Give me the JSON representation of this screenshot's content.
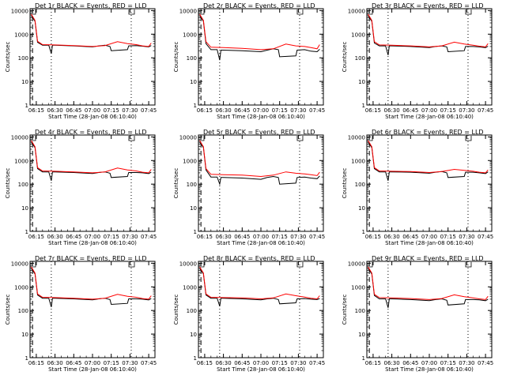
{
  "chart_data": {
    "type": "line",
    "layout": "3x3 grid",
    "y_scale": "log",
    "ylim": [
      1,
      12000
    ],
    "ylabel": "Counts/sec",
    "xlabel": "Start Time (28-Jan-08 06:10:40)",
    "x_ticks": [
      "06:15",
      "06:30",
      "06:45",
      "07:00",
      "07:15",
      "07:30",
      "07:45"
    ],
    "y_ticks": [
      "1",
      "10",
      "100",
      "1000",
      "10000"
    ],
    "xlim": [
      "06:10",
      "07:50"
    ],
    "series_colors": {
      "events": "#000000",
      "lld": "#ff0000"
    },
    "panels": [
      {
        "title": "Det 1r BLACK = Events, RED = LLD",
        "series": [
          {
            "color": "events",
            "x": [
              "06:11",
              "06:14",
              "06:16",
              "06:20",
              "06:25",
              "06:27",
              "06:28",
              "06:30",
              "06:45",
              "07:00",
              "07:05",
              "07:10",
              "07:14",
              "07:15",
              "07:28",
              "07:29",
              "07:35",
              "07:40",
              "07:45",
              "07:47"
            ],
            "y": [
              6000,
              3500,
              450,
              340,
              340,
              150,
              340,
              340,
              320,
              290,
              320,
              340,
              300,
              200,
              220,
              320,
              330,
              310,
              290,
              330
            ]
          },
          {
            "color": "lld",
            "x": [
              "06:11",
              "06:14",
              "06:16",
              "06:20",
              "06:30",
              "06:45",
              "07:00",
              "07:10",
              "07:20",
              "07:28",
              "07:35",
              "07:40",
              "07:45",
              "07:47"
            ],
            "y": [
              7000,
              3800,
              500,
              360,
              350,
              330,
              300,
              330,
              480,
              400,
              360,
              320,
              300,
              420
            ]
          }
        ]
      },
      {
        "title": "Det 2r BLACK = Events, RED = LLD",
        "series": [
          {
            "color": "events",
            "x": [
              "06:11",
              "06:14",
              "06:16",
              "06:20",
              "06:25",
              "06:27",
              "06:28",
              "06:30",
              "06:45",
              "07:00",
              "07:05",
              "07:10",
              "07:14",
              "07:15",
              "07:28",
              "07:29",
              "07:35",
              "07:40",
              "07:45",
              "07:47"
            ],
            "y": [
              6000,
              3500,
              400,
              220,
              220,
              80,
              210,
              210,
              200,
              180,
              210,
              240,
              220,
              110,
              120,
              210,
              220,
              190,
              180,
              230
            ]
          },
          {
            "color": "lld",
            "x": [
              "06:11",
              "06:14",
              "06:16",
              "06:20",
              "06:30",
              "06:45",
              "07:00",
              "07:10",
              "07:20",
              "07:28",
              "07:35",
              "07:40",
              "07:45",
              "07:47"
            ],
            "y": [
              7000,
              3800,
              480,
              280,
              270,
              250,
              220,
              240,
              380,
              320,
              300,
              270,
              240,
              360
            ]
          }
        ]
      },
      {
        "title": "Det 3r BLACK = Events, RED = LLD",
        "series": [
          {
            "color": "events",
            "x": [
              "06:11",
              "06:14",
              "06:16",
              "06:20",
              "06:25",
              "06:27",
              "06:28",
              "06:30",
              "06:45",
              "07:00",
              "07:05",
              "07:10",
              "07:14",
              "07:15",
              "07:28",
              "07:29",
              "07:35",
              "07:40",
              "07:45",
              "07:47"
            ],
            "y": [
              6000,
              3500,
              420,
              320,
              320,
              130,
              320,
              320,
              300,
              270,
              300,
              320,
              290,
              180,
              200,
              300,
              300,
              290,
              270,
              310
            ]
          },
          {
            "color": "lld",
            "x": [
              "06:11",
              "06:14",
              "06:16",
              "06:20",
              "06:30",
              "06:45",
              "07:00",
              "07:10",
              "07:20",
              "07:28",
              "07:35",
              "07:40",
              "07:45",
              "07:47"
            ],
            "y": [
              7000,
              3800,
              480,
              350,
              340,
              320,
              290,
              320,
              460,
              380,
              340,
              310,
              290,
              400
            ]
          }
        ]
      },
      {
        "title": "Det 4r BLACK = Events, RED = LLD",
        "series": [
          {
            "color": "events",
            "x": [
              "06:11",
              "06:14",
              "06:16",
              "06:20",
              "06:25",
              "06:27",
              "06:28",
              "06:30",
              "06:45",
              "07:00",
              "07:05",
              "07:10",
              "07:14",
              "07:15",
              "07:28",
              "07:29",
              "07:35",
              "07:40",
              "07:45",
              "07:47"
            ],
            "y": [
              6000,
              3500,
              450,
              330,
              330,
              140,
              330,
              330,
              310,
              280,
              310,
              330,
              290,
              190,
              210,
              310,
              310,
              300,
              280,
              320
            ]
          },
          {
            "color": "lld",
            "x": [
              "06:11",
              "06:14",
              "06:16",
              "06:20",
              "06:30",
              "06:45",
              "07:00",
              "07:10",
              "07:20",
              "07:28",
              "07:35",
              "07:40",
              "07:45",
              "07:47"
            ],
            "y": [
              7000,
              3800,
              500,
              360,
              350,
              330,
              300,
              330,
              480,
              400,
              360,
              320,
              300,
              420
            ]
          }
        ]
      },
      {
        "title": "Det 5r BLACK = Events, RED = LLD",
        "series": [
          {
            "color": "events",
            "x": [
              "06:11",
              "06:14",
              "06:16",
              "06:20",
              "06:25",
              "06:27",
              "06:28",
              "06:30",
              "06:45",
              "07:00",
              "07:05",
              "07:10",
              "07:14",
              "07:15",
              "07:28",
              "07:29",
              "07:35",
              "07:40",
              "07:45",
              "07:47"
            ],
            "y": [
              6000,
              3500,
              400,
              200,
              200,
              100,
              190,
              190,
              180,
              160,
              190,
              210,
              190,
              100,
              110,
              190,
              200,
              180,
              170,
              220
            ]
          },
          {
            "color": "lld",
            "x": [
              "06:11",
              "06:14",
              "06:16",
              "06:20",
              "06:30",
              "06:45",
              "07:00",
              "07:10",
              "07:20",
              "07:28",
              "07:35",
              "07:40",
              "07:45",
              "07:47"
            ],
            "y": [
              7000,
              3800,
              450,
              260,
              250,
              240,
              210,
              240,
              330,
              290,
              270,
              250,
              230,
              320
            ]
          }
        ]
      },
      {
        "title": "Det 6r BLACK = Events, RED = LLD",
        "series": [
          {
            "color": "events",
            "x": [
              "06:11",
              "06:14",
              "06:16",
              "06:20",
              "06:25",
              "06:27",
              "06:28",
              "06:30",
              "06:45",
              "07:00",
              "07:05",
              "07:10",
              "07:14",
              "07:15",
              "07:28",
              "07:29",
              "07:35",
              "07:40",
              "07:45",
              "07:47"
            ],
            "y": [
              6000,
              3500,
              450,
              330,
              330,
              140,
              330,
              330,
              320,
              290,
              320,
              340,
              300,
              190,
              210,
              320,
              320,
              300,
              280,
              330
            ]
          },
          {
            "color": "lld",
            "x": [
              "06:11",
              "06:14",
              "06:16",
              "06:20",
              "06:30",
              "06:45",
              "07:00",
              "07:10",
              "07:20",
              "07:28",
              "07:35",
              "07:40",
              "07:45",
              "07:47"
            ],
            "y": [
              7000,
              3800,
              500,
              360,
              350,
              340,
              310,
              340,
              420,
              380,
              350,
              320,
              300,
              400
            ]
          }
        ]
      },
      {
        "title": "Det 7r BLACK = Events, RED = LLD",
        "series": [
          {
            "color": "events",
            "x": [
              "06:11",
              "06:14",
              "06:16",
              "06:20",
              "06:25",
              "06:27",
              "06:28",
              "06:30",
              "06:45",
              "07:00",
              "07:05",
              "07:10",
              "07:14",
              "07:15",
              "07:28",
              "07:29",
              "07:35",
              "07:40",
              "07:45",
              "07:47"
            ],
            "y": [
              6000,
              3500,
              450,
              330,
              330,
              140,
              330,
              330,
              310,
              280,
              310,
              330,
              290,
              180,
              200,
              310,
              310,
              300,
              280,
              320
            ]
          },
          {
            "color": "lld",
            "x": [
              "06:11",
              "06:14",
              "06:16",
              "06:20",
              "06:30",
              "06:45",
              "07:00",
              "07:10",
              "07:20",
              "07:28",
              "07:35",
              "07:40",
              "07:45",
              "07:47"
            ],
            "y": [
              7000,
              3800,
              500,
              360,
              350,
              330,
              300,
              330,
              480,
              400,
              360,
              320,
              300,
              420
            ]
          }
        ]
      },
      {
        "title": "Det 8r BLACK = Events, RED = LLD",
        "series": [
          {
            "color": "events",
            "x": [
              "06:11",
              "06:14",
              "06:16",
              "06:20",
              "06:25",
              "06:27",
              "06:28",
              "06:30",
              "06:45",
              "07:00",
              "07:05",
              "07:10",
              "07:14",
              "07:15",
              "07:28",
              "07:29",
              "07:35",
              "07:40",
              "07:45",
              "07:47"
            ],
            "y": [
              6000,
              3500,
              450,
              330,
              330,
              150,
              330,
              330,
              310,
              280,
              310,
              330,
              290,
              190,
              210,
              310,
              320,
              300,
              290,
              320
            ]
          },
          {
            "color": "lld",
            "x": [
              "06:11",
              "06:14",
              "06:16",
              "06:20",
              "06:30",
              "06:45",
              "07:00",
              "07:10",
              "07:20",
              "07:28",
              "07:35",
              "07:40",
              "07:45",
              "07:47"
            ],
            "y": [
              7000,
              3800,
              500,
              360,
              350,
              340,
              310,
              340,
              500,
              420,
              370,
              330,
              310,
              420
            ]
          }
        ]
      },
      {
        "title": "Det 9r BLACK = Events, RED = LLD",
        "series": [
          {
            "color": "events",
            "x": [
              "06:11",
              "06:14",
              "06:16",
              "06:20",
              "06:25",
              "06:27",
              "06:28",
              "06:30",
              "06:45",
              "07:00",
              "07:05",
              "07:10",
              "07:14",
              "07:15",
              "07:28",
              "07:29",
              "07:35",
              "07:40",
              "07:45",
              "07:47"
            ],
            "y": [
              6000,
              3500,
              430,
              310,
              310,
              130,
              310,
              310,
              290,
              260,
              290,
              310,
              270,
              170,
              190,
              290,
              290,
              280,
              260,
              300
            ]
          },
          {
            "color": "lld",
            "x": [
              "06:11",
              "06:14",
              "06:16",
              "06:20",
              "06:30",
              "06:45",
              "07:00",
              "07:10",
              "07:20",
              "07:28",
              "07:35",
              "07:40",
              "07:45",
              "07:47"
            ],
            "y": [
              7000,
              3800,
              480,
              350,
              340,
              320,
              290,
              320,
              460,
              380,
              340,
              310,
              290,
              400
            ]
          }
        ]
      }
    ]
  }
}
